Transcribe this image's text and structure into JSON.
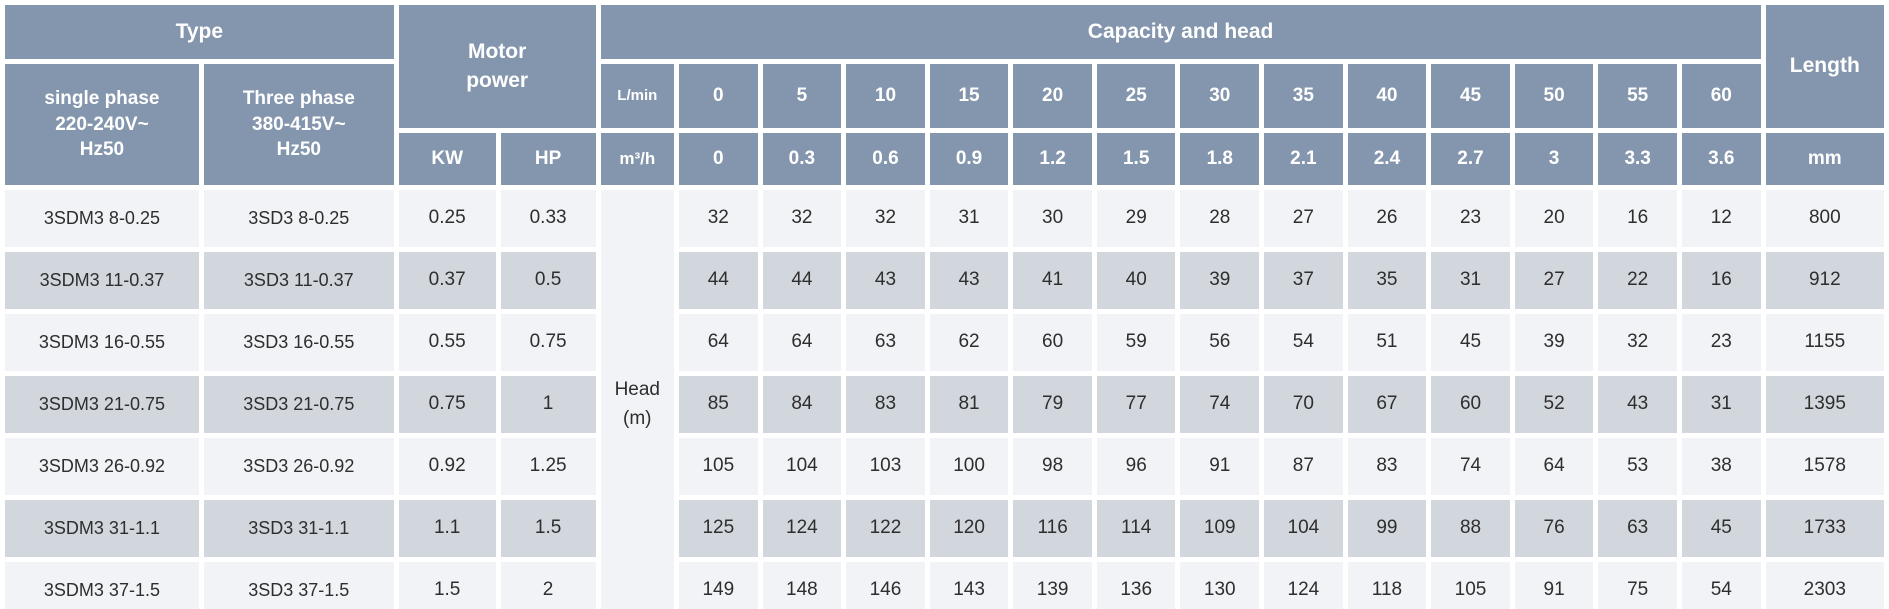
{
  "header": {
    "type": "Type",
    "single_phase": "single phase\n220-240V~\nHz50",
    "three_phase": "Three phase\n380-415V~\nHz50",
    "motor_power": "Motor\npower",
    "kw": "KW",
    "hp": "HP",
    "capacity_and_head": "Capacity and head",
    "length": "Length",
    "lmin_label": "L/min",
    "m3h_label": "m³/h",
    "mm_label": "mm",
    "lmin_values": [
      "0",
      "5",
      "10",
      "15",
      "20",
      "25",
      "30",
      "35",
      "40",
      "45",
      "50",
      "55",
      "60"
    ],
    "m3h_values": [
      "0",
      "0.3",
      "0.6",
      "0.9",
      "1.2",
      "1.5",
      "1.8",
      "2.1",
      "2.4",
      "2.7",
      "3",
      "3.3",
      "3.6"
    ]
  },
  "head_unit_cell": "Head\n(m)",
  "rows": [
    {
      "single_phase": "3SDM3 8-0.25",
      "three_phase": "3SD3 8-0.25",
      "kw": "0.25",
      "hp": "0.33",
      "head_m": [
        "32",
        "32",
        "32",
        "31",
        "30",
        "29",
        "28",
        "27",
        "26",
        "23",
        "20",
        "16",
        "12"
      ],
      "length_mm": "800"
    },
    {
      "single_phase": "3SDM3 11-0.37",
      "three_phase": "3SD3 11-0.37",
      "kw": "0.37",
      "hp": "0.5",
      "head_m": [
        "44",
        "44",
        "43",
        "43",
        "41",
        "40",
        "39",
        "37",
        "35",
        "31",
        "27",
        "22",
        "16"
      ],
      "length_mm": "912"
    },
    {
      "single_phase": "3SDM3 16-0.55",
      "three_phase": "3SD3 16-0.55",
      "kw": "0.55",
      "hp": "0.75",
      "head_m": [
        "64",
        "64",
        "63",
        "62",
        "60",
        "59",
        "56",
        "54",
        "51",
        "45",
        "39",
        "32",
        "23"
      ],
      "length_mm": "1155"
    },
    {
      "single_phase": "3SDM3 21-0.75",
      "three_phase": "3SD3 21-0.75",
      "kw": "0.75",
      "hp": "1",
      "head_m": [
        "85",
        "84",
        "83",
        "81",
        "79",
        "77",
        "74",
        "70",
        "67",
        "60",
        "52",
        "43",
        "31"
      ],
      "length_mm": "1395"
    },
    {
      "single_phase": "3SDM3 26-0.92",
      "three_phase": "3SD3 26-0.92",
      "kw": "0.92",
      "hp": "1.25",
      "head_m": [
        "105",
        "104",
        "103",
        "100",
        "98",
        "96",
        "91",
        "87",
        "83",
        "74",
        "64",
        "53",
        "38"
      ],
      "length_mm": "1578"
    },
    {
      "single_phase": "3SDM3 31-1.1",
      "three_phase": "3SD3 31-1.1",
      "kw": "1.1",
      "hp": "1.5",
      "head_m": [
        "125",
        "124",
        "122",
        "120",
        "116",
        "114",
        "109",
        "104",
        "99",
        "88",
        "76",
        "63",
        "45"
      ],
      "length_mm": "1733"
    },
    {
      "single_phase": "3SDM3 37-1.5",
      "three_phase": "3SD3 37-1.5",
      "kw": "1.5",
      "hp": "2",
      "head_m": [
        "149",
        "148",
        "146",
        "143",
        "139",
        "136",
        "130",
        "124",
        "118",
        "105",
        "91",
        "75",
        "54"
      ],
      "length_mm": "2303"
    }
  ],
  "colors": {
    "header_bg": "#8496ad",
    "row_light": "#f1f3f6",
    "row_dark": "#d2d7de",
    "cell_gap": "#ffffff",
    "header_text": "#ffffff",
    "body_text": "#2e2e2e"
  }
}
